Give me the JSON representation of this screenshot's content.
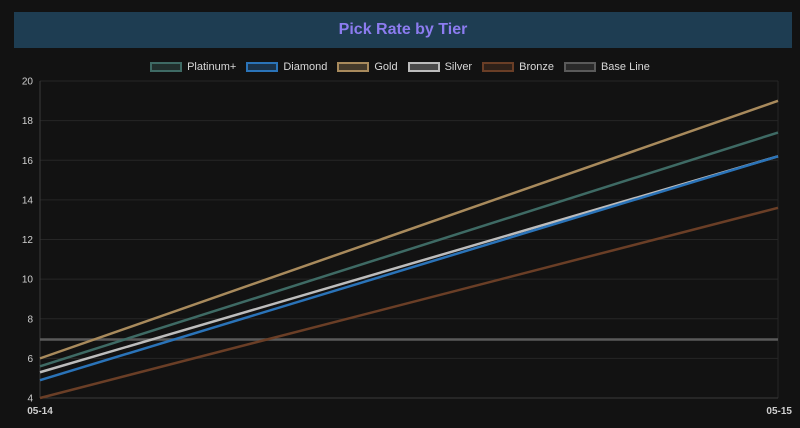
{
  "chart_data": {
    "type": "line",
    "title": "Pick Rate by Tier",
    "x": [
      "05-14",
      "05-15"
    ],
    "ylim": [
      4,
      20
    ],
    "yticks": [
      4,
      6,
      8,
      10,
      12,
      14,
      16,
      18,
      20
    ],
    "grid": true,
    "legend_position": "top-center",
    "series": [
      {
        "name": "Platinum+",
        "color": "#3e6a64",
        "values": [
          5.6,
          17.4
        ]
      },
      {
        "name": "Diamond",
        "color": "#2a73b8",
        "values": [
          4.9,
          16.2
        ]
      },
      {
        "name": "Gold",
        "color": "#a88a5c",
        "values": [
          6.0,
          19.0
        ]
      },
      {
        "name": "Silver",
        "color": "#bcbcbc",
        "values": [
          5.3,
          16.2
        ]
      },
      {
        "name": "Bronze",
        "color": "#6a3e26",
        "values": [
          4.0,
          13.6
        ]
      },
      {
        "name": "Base Line",
        "color": "#5a5a5a",
        "values": [
          6.95,
          6.95
        ]
      }
    ]
  }
}
